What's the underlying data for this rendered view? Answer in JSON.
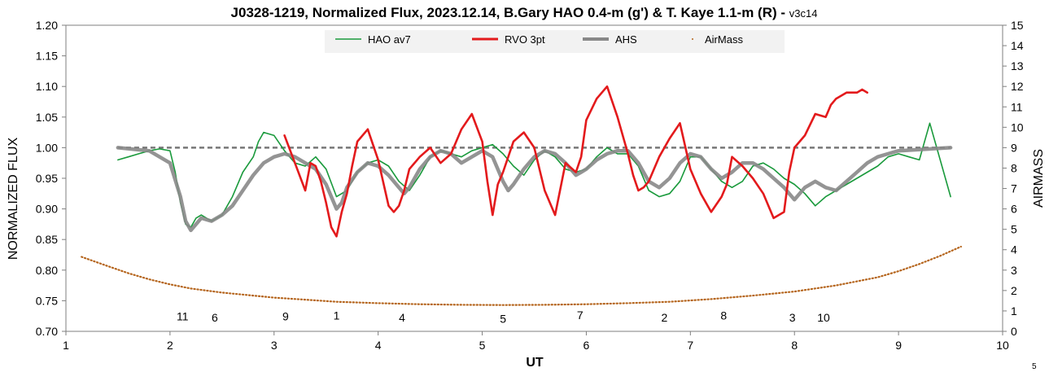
{
  "chart_data": {
    "type": "line",
    "title": "J0328-1219, Normalized Flux, 2023.12.14, B.Gary HAO 0.4-m (g') & T. Kaye 1.1-m (R) - ",
    "title_suffix": "v3c14",
    "xlabel": "UT",
    "ylabel": "NORMALIZED FLUX",
    "y2label": "AIRMASS",
    "xlim": [
      1,
      10
    ],
    "ylim": [
      0.7,
      1.2
    ],
    "y2lim": [
      0,
      15
    ],
    "x_ticks": [
      "1",
      "2",
      "3",
      "4",
      "5",
      "6",
      "7",
      "8",
      "9",
      "10"
    ],
    "y_ticks": [
      "0.70",
      "0.75",
      "0.80",
      "0.85",
      "0.90",
      "0.95",
      "1.00",
      "1.05",
      "1.10",
      "1.15",
      "1.20"
    ],
    "y2_ticks": [
      "0",
      "1",
      "2",
      "3",
      "4",
      "5",
      "6",
      "7",
      "8",
      "9",
      "10",
      "11",
      "12",
      "13",
      "14",
      "15"
    ],
    "grid": false,
    "legend_position": "top-center",
    "corner_label": "5",
    "series": [
      {
        "name": "HAO av7",
        "color": "#1a9a3c",
        "x": [
          1.5,
          1.6,
          1.7,
          1.8,
          1.9,
          2.0,
          2.05,
          2.1,
          2.15,
          2.2,
          2.25,
          2.3,
          2.4,
          2.5,
          2.6,
          2.7,
          2.8,
          2.85,
          2.9,
          3.0,
          3.1,
          3.2,
          3.3,
          3.4,
          3.5,
          3.6,
          3.7,
          3.8,
          3.9,
          4.0,
          4.1,
          4.2,
          4.3,
          4.4,
          4.5,
          4.6,
          4.7,
          4.8,
          4.9,
          5.0,
          5.1,
          5.2,
          5.3,
          5.4,
          5.5,
          5.6,
          5.7,
          5.8,
          5.9,
          6.0,
          6.1,
          6.2,
          6.3,
          6.4,
          6.5,
          6.6,
          6.7,
          6.8,
          6.9,
          7.0,
          7.1,
          7.2,
          7.3,
          7.4,
          7.5,
          7.6,
          7.7,
          7.8,
          7.9,
          8.0,
          8.1,
          8.2,
          8.3,
          8.4,
          8.5,
          8.6,
          8.7,
          8.8,
          8.9,
          9.0,
          9.1,
          9.2,
          9.3,
          9.4,
          9.5
        ],
        "y": [
          0.98,
          0.985,
          0.99,
          0.995,
          0.998,
          0.995,
          0.96,
          0.91,
          0.875,
          0.87,
          0.885,
          0.89,
          0.88,
          0.89,
          0.92,
          0.96,
          0.985,
          1.01,
          1.025,
          1.02,
          0.995,
          0.975,
          0.97,
          0.985,
          0.965,
          0.92,
          0.93,
          0.96,
          0.975,
          0.98,
          0.97,
          0.945,
          0.93,
          0.955,
          0.985,
          0.995,
          0.99,
          0.985,
          0.995,
          1.0,
          1.005,
          0.99,
          0.97,
          0.955,
          0.98,
          0.995,
          0.985,
          0.965,
          0.96,
          0.965,
          0.985,
          1.0,
          0.99,
          0.99,
          0.97,
          0.93,
          0.92,
          0.925,
          0.945,
          0.985,
          0.985,
          0.965,
          0.945,
          0.935,
          0.945,
          0.97,
          0.975,
          0.965,
          0.95,
          0.94,
          0.925,
          0.905,
          0.92,
          0.93,
          0.94,
          0.95,
          0.96,
          0.97,
          0.985,
          0.99,
          0.985,
          0.98,
          1.04,
          0.98,
          0.92
        ]
      },
      {
        "name": "RVO 3pt",
        "color": "#e31a1c",
        "x": [
          3.1,
          3.2,
          3.3,
          3.35,
          3.4,
          3.45,
          3.5,
          3.55,
          3.6,
          3.65,
          3.7,
          3.75,
          3.8,
          3.9,
          4.0,
          4.1,
          4.15,
          4.2,
          4.25,
          4.3,
          4.4,
          4.5,
          4.6,
          4.7,
          4.8,
          4.9,
          5.0,
          5.05,
          5.1,
          5.15,
          5.2,
          5.3,
          5.4,
          5.5,
          5.6,
          5.7,
          5.8,
          5.9,
          5.95,
          6.0,
          6.1,
          6.2,
          6.3,
          6.4,
          6.45,
          6.5,
          6.55,
          6.6,
          6.7,
          6.8,
          6.9,
          7.0,
          7.1,
          7.2,
          7.3,
          7.35,
          7.4,
          7.5,
          7.6,
          7.7,
          7.8,
          7.9,
          7.95,
          8.0,
          8.1,
          8.2,
          8.3,
          8.35,
          8.4,
          8.45,
          8.5,
          8.6,
          8.65,
          8.7
        ],
        "y": [
          1.02,
          0.975,
          0.93,
          0.975,
          0.97,
          0.945,
          0.91,
          0.87,
          0.855,
          0.895,
          0.925,
          0.97,
          1.01,
          1.03,
          0.98,
          0.905,
          0.895,
          0.905,
          0.93,
          0.965,
          0.985,
          1.0,
          0.975,
          0.99,
          1.03,
          1.055,
          1.01,
          0.945,
          0.89,
          0.94,
          0.96,
          1.01,
          1.025,
          1.0,
          0.93,
          0.89,
          0.975,
          0.96,
          0.985,
          1.045,
          1.08,
          1.1,
          1.05,
          0.99,
          0.955,
          0.93,
          0.935,
          0.945,
          0.985,
          1.015,
          1.04,
          0.965,
          0.925,
          0.895,
          0.92,
          0.94,
          0.985,
          0.97,
          0.95,
          0.925,
          0.885,
          0.895,
          0.96,
          1.0,
          1.02,
          1.055,
          1.05,
          1.07,
          1.08,
          1.085,
          1.09,
          1.09,
          1.095,
          1.09
        ]
      },
      {
        "name": "AHS",
        "color": "#888888",
        "x": [
          1.5,
          1.8,
          2.0,
          2.1,
          2.15,
          2.2,
          2.25,
          2.3,
          2.4,
          2.5,
          2.6,
          2.7,
          2.8,
          2.9,
          3.0,
          3.1,
          3.2,
          3.3,
          3.4,
          3.5,
          3.55,
          3.6,
          3.65,
          3.7,
          3.8,
          3.9,
          4.0,
          4.1,
          4.2,
          4.25,
          4.3,
          4.4,
          4.5,
          4.6,
          4.7,
          4.8,
          4.9,
          5.0,
          5.1,
          5.2,
          5.25,
          5.3,
          5.4,
          5.5,
          5.6,
          5.7,
          5.8,
          5.9,
          5.95,
          6.0,
          6.1,
          6.2,
          6.3,
          6.4,
          6.5,
          6.6,
          6.7,
          6.8,
          6.9,
          7.0,
          7.1,
          7.2,
          7.3,
          7.4,
          7.5,
          7.6,
          7.7,
          7.8,
          7.9,
          8.0,
          8.1,
          8.2,
          8.3,
          8.4,
          8.5,
          8.6,
          8.7,
          8.8,
          8.9,
          9.0,
          9.5
        ],
        "y": [
          1.0,
          0.995,
          0.975,
          0.92,
          0.88,
          0.865,
          0.875,
          0.885,
          0.88,
          0.89,
          0.905,
          0.93,
          0.955,
          0.975,
          0.985,
          0.99,
          0.985,
          0.975,
          0.965,
          0.94,
          0.92,
          0.9,
          0.91,
          0.935,
          0.96,
          0.975,
          0.97,
          0.955,
          0.935,
          0.925,
          0.935,
          0.965,
          0.985,
          0.995,
          0.99,
          0.975,
          0.985,
          0.995,
          0.985,
          0.945,
          0.93,
          0.94,
          0.965,
          0.985,
          0.995,
          0.99,
          0.975,
          0.955,
          0.96,
          0.965,
          0.98,
          0.99,
          0.995,
          0.995,
          0.975,
          0.945,
          0.935,
          0.95,
          0.975,
          0.99,
          0.985,
          0.965,
          0.95,
          0.96,
          0.975,
          0.975,
          0.965,
          0.95,
          0.935,
          0.915,
          0.935,
          0.945,
          0.935,
          0.93,
          0.945,
          0.96,
          0.975,
          0.985,
          0.99,
          0.995,
          1.0
        ]
      },
      {
        "name": "AirMass",
        "color": "#b5651d",
        "axis": "y2",
        "x": [
          1.15,
          1.4,
          1.6,
          1.8,
          2.0,
          2.2,
          2.5,
          2.8,
          3.0,
          3.3,
          3.6,
          4.0,
          4.4,
          4.8,
          5.2,
          5.6,
          6.0,
          6.4,
          6.8,
          7.2,
          7.6,
          8.0,
          8.4,
          8.8,
          9.0,
          9.2,
          9.4,
          9.6
        ],
        "y": [
          3.65,
          3.2,
          2.85,
          2.55,
          2.3,
          2.1,
          1.9,
          1.75,
          1.65,
          1.55,
          1.45,
          1.38,
          1.33,
          1.3,
          1.29,
          1.3,
          1.33,
          1.38,
          1.45,
          1.58,
          1.75,
          1.95,
          2.25,
          2.65,
          2.95,
          3.3,
          3.7,
          4.15
        ]
      }
    ],
    "reference_line": {
      "y": 1.0,
      "color": "#777777",
      "style": "dashed"
    },
    "annotations": [
      {
        "text": "11",
        "x": 2.12,
        "y": 0.718
      },
      {
        "text": "6",
        "x": 2.43,
        "y": 0.716
      },
      {
        "text": "9",
        "x": 3.11,
        "y": 0.718
      },
      {
        "text": "1",
        "x": 3.6,
        "y": 0.719
      },
      {
        "text": "4",
        "x": 4.23,
        "y": 0.716
      },
      {
        "text": "5",
        "x": 5.2,
        "y": 0.714
      },
      {
        "text": "7",
        "x": 5.94,
        "y": 0.72
      },
      {
        "text": "2",
        "x": 6.75,
        "y": 0.716
      },
      {
        "text": "8",
        "x": 7.32,
        "y": 0.719
      },
      {
        "text": "3",
        "x": 7.98,
        "y": 0.716
      },
      {
        "text": "10",
        "x": 8.28,
        "y": 0.716
      }
    ]
  }
}
